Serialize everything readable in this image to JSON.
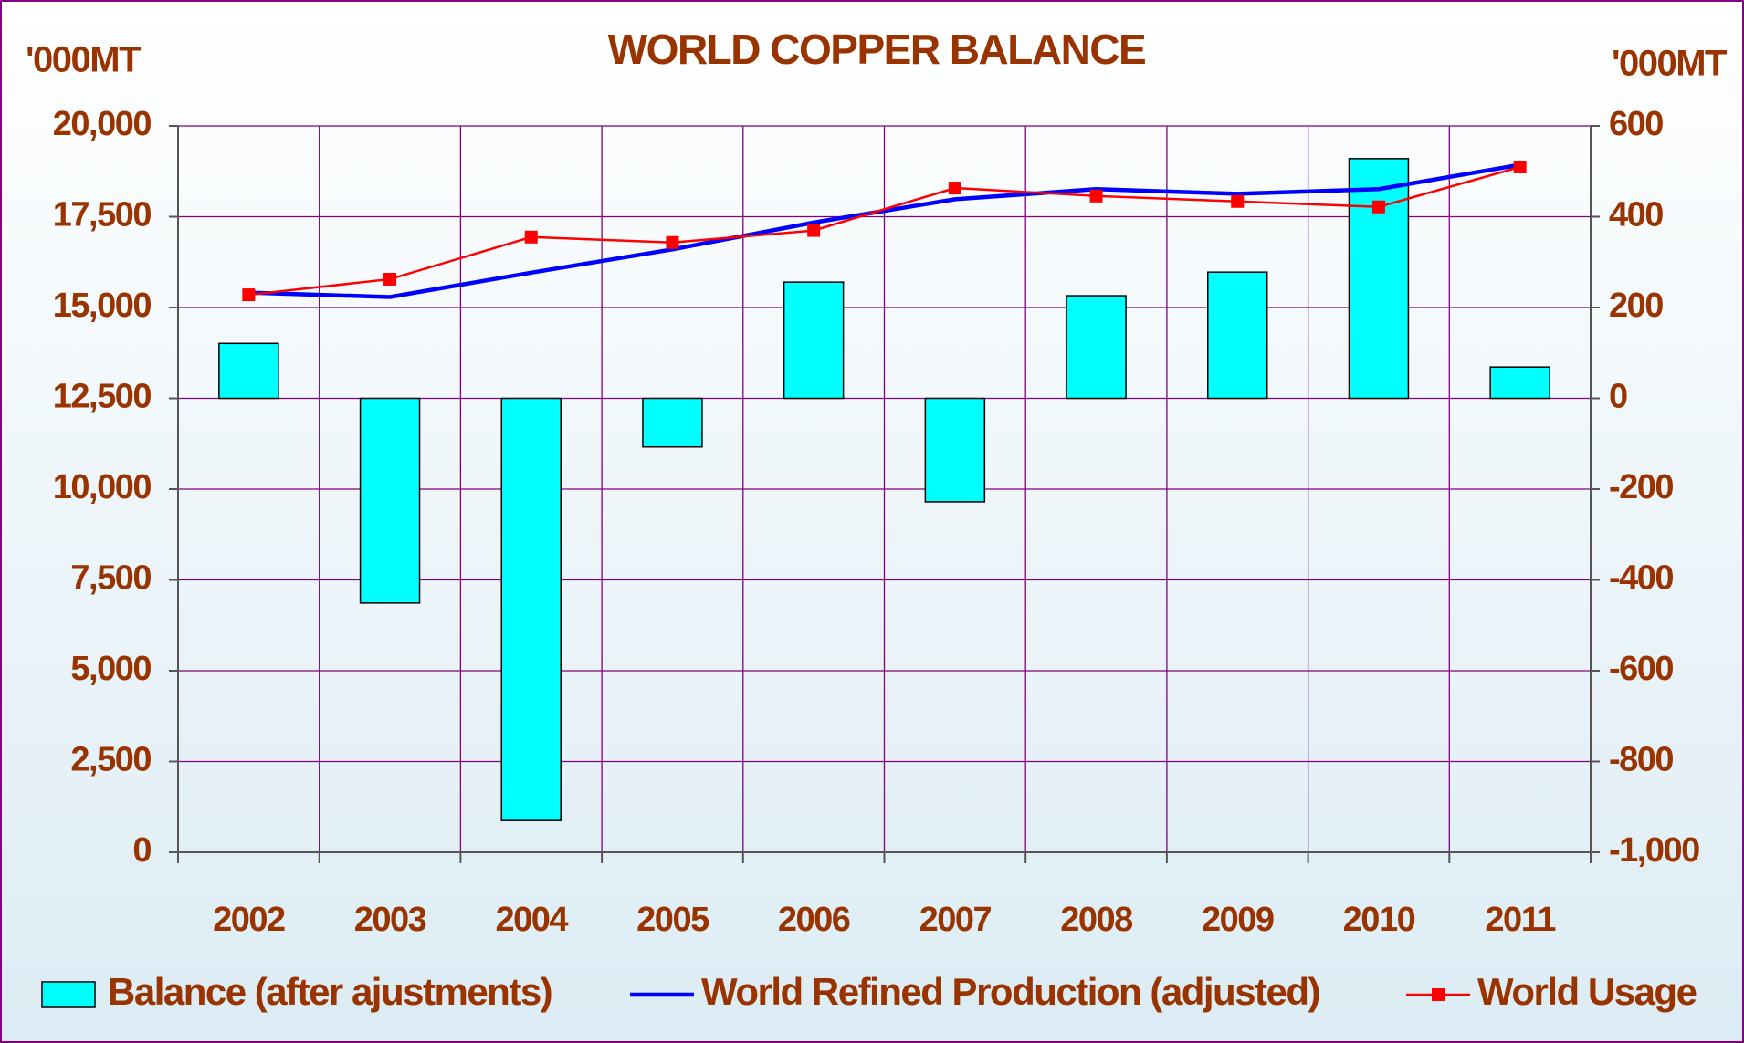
{
  "chart_data": {
    "type": "bar",
    "title": "WORLD COPPER BALANCE",
    "y_label": "'000MT",
    "y2_label": "'000MT",
    "categories": [
      "2002",
      "2003",
      "2004",
      "2005",
      "2006",
      "2007",
      "2008",
      "2009",
      "2010",
      "2011"
    ],
    "series": [
      {
        "name": "Balance (after ajustments)",
        "type": "bar",
        "axis": "y2",
        "color": "#00ffff",
        "values": [
          121,
          -451,
          -930,
          -107,
          256,
          -228,
          226,
          278,
          528,
          69
        ]
      },
      {
        "name": "World Refined Production (adjusted)",
        "type": "line",
        "axis": "y",
        "color": "#0000ff",
        "values": [
          15410,
          15290,
          15960,
          16600,
          17340,
          17980,
          18260,
          18130,
          18260,
          18930
        ]
      },
      {
        "name": "World Usage",
        "type": "line",
        "axis": "y",
        "color": "#ff0000",
        "marker": "square",
        "values": [
          15350,
          15780,
          16940,
          16790,
          17120,
          18290,
          18070,
          17920,
          17770,
          18870
        ]
      }
    ],
    "ylim": [
      0,
      20000
    ],
    "yticks": [
      0,
      {
        "value": 2500,
        "label": "2,500"
      },
      {
        "value": 5000,
        "label": "5,000"
      },
      {
        "value": 7500,
        "label": "7,500"
      },
      {
        "value": 10000,
        "label": "10,000"
      },
      {
        "value": 12500,
        "label": "12,500"
      },
      {
        "value": 15000,
        "label": "15,000"
      },
      {
        "value": 17500,
        "label": "17,500"
      },
      {
        "value": 20000,
        "label": "20,000"
      }
    ],
    "y2lim": [
      -1000,
      600
    ],
    "y2ticks": [
      {
        "value": -1000,
        "label": "-1,000"
      },
      -800,
      -600,
      -400,
      -200,
      0,
      200,
      400,
      600
    ],
    "grid": true,
    "legend": "bottom"
  }
}
